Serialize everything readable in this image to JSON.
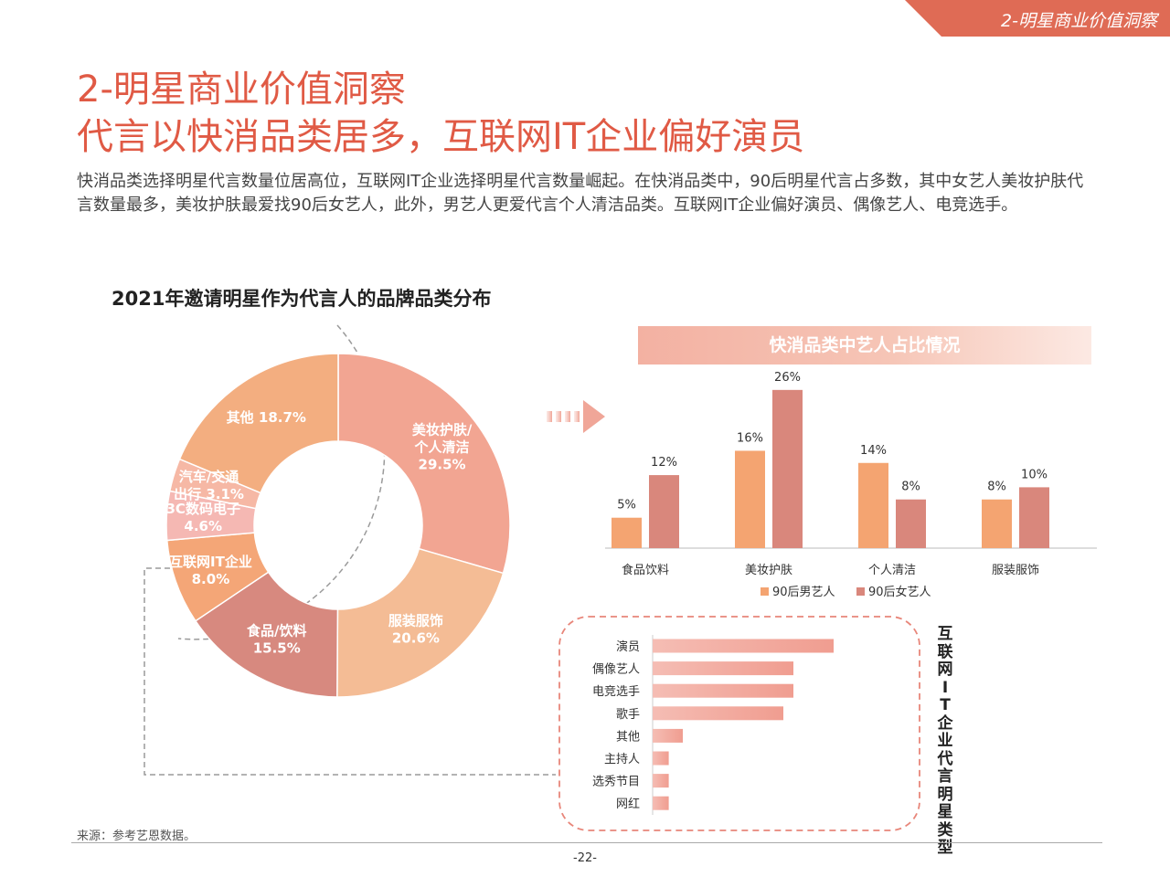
{
  "header": {
    "corner_label": "2-明星商业价值洞察"
  },
  "page": {
    "title": "2-明星商业价值洞察",
    "subtitle": "代言以快消品类居多，互联网IT企业偏好演员",
    "description": "快消品类选择明星代言数量位居高位，互联网IT企业选择明星代言数量崛起。在快消品类中，90后明星代言占多数，其中女艺人美妆护肤代言数量最多，美妆护肤最爱找90后女艺人，此外，男艺人更爱代言个人清洁品类。互联网IT企业偏好演员、偶像艺人、电竞选手。",
    "source": "来源：参考艺恩数据。",
    "page_number": "-22-"
  },
  "colors": {
    "accent": "#e05a45",
    "male": "#f4a471",
    "female": "#d9877c",
    "it_bar": "#f2aaa0"
  },
  "chart_data": [
    {
      "type": "pie",
      "title": "2021年邀请明星作为代言人的品牌品类分布",
      "slices": [
        {
          "name": "美妆护肤/\n个人清洁",
          "value": 29.5,
          "label": "29.5%",
          "color": "#f2a592"
        },
        {
          "name": "服装服饰",
          "value": 20.6,
          "label": "20.6%",
          "color": "#f4bc95"
        },
        {
          "name": "食品/饮料",
          "value": 15.5,
          "label": "15.5%",
          "color": "#d7897f"
        },
        {
          "name": "互联网IT企业",
          "value": 8.0,
          "label": "8.0%",
          "color": "#f4a677"
        },
        {
          "name": "3C数码电子",
          "value": 4.6,
          "label": "4.6%",
          "color": "#f5b8b3"
        },
        {
          "name": "汽车/交通\n出行",
          "value": 3.1,
          "label": "3.1%",
          "color": "#f6b8a5"
        },
        {
          "name": "其他",
          "value": 18.7,
          "label": "18.7%",
          "color": "#f3ae80"
        }
      ]
    },
    {
      "type": "bar",
      "title": "快消品类中艺人占比情况",
      "categories": [
        "食品饮料",
        "美妆护肤",
        "个人清洁",
        "服装服饰"
      ],
      "series": [
        {
          "name": "90后男艺人",
          "values": [
            5,
            16,
            14,
            8
          ],
          "labels": [
            "5%",
            "16%",
            "14%",
            "8%"
          ],
          "color": "#f4a471"
        },
        {
          "name": "90后女艺人",
          "values": [
            12,
            26,
            8,
            10
          ],
          "labels": [
            "12%",
            "26%",
            "8%",
            "10%"
          ],
          "color": "#d9877c"
        }
      ],
      "ylim": [
        0,
        30
      ],
      "legend": "bottom"
    },
    {
      "type": "bar",
      "orientation": "horizontal",
      "title": "互联网IT企业代言明星类型",
      "categories": [
        "演员",
        "偶像艺人",
        "电竞选手",
        "歌手",
        "其他",
        "主持人",
        "选秀节目",
        "网红"
      ],
      "values": [
        9,
        7,
        7,
        6.5,
        1.5,
        0.8,
        0.8,
        0.8
      ],
      "xlim": [
        0,
        9
      ]
    }
  ]
}
